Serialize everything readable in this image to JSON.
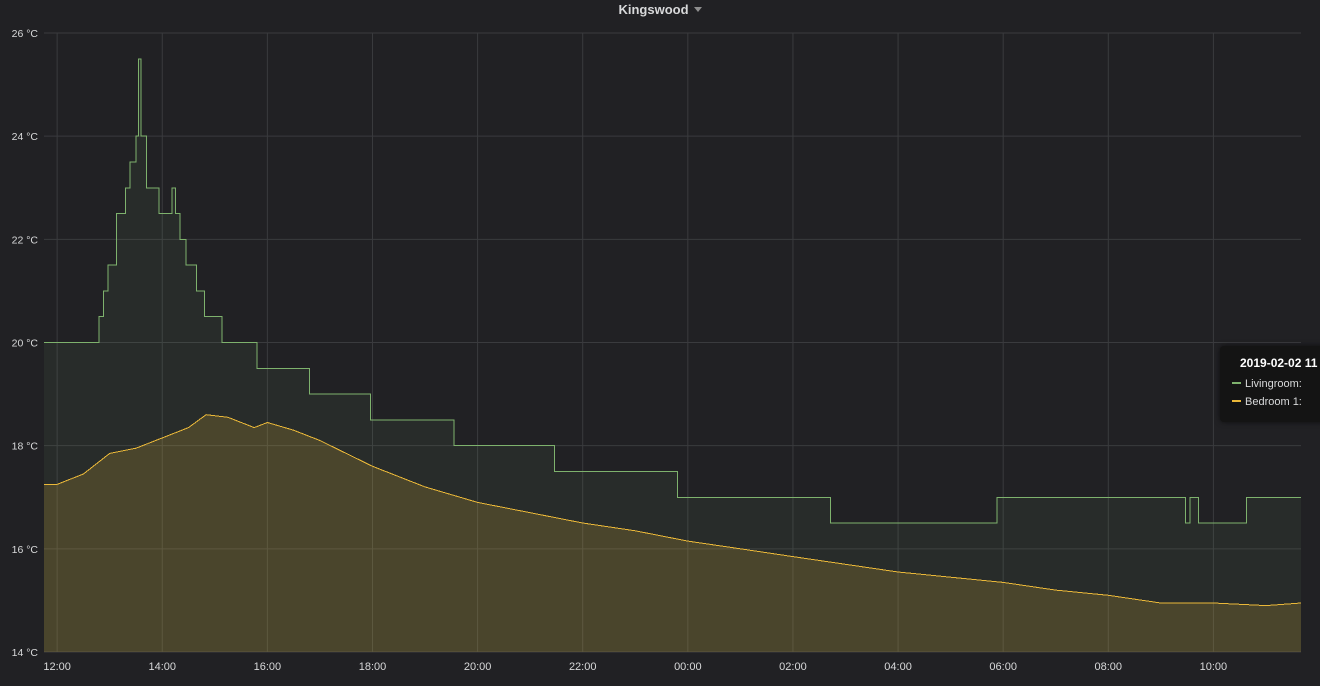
{
  "panel": {
    "title": "Kingswood"
  },
  "tooltip": {
    "time": "2019-02-02 11",
    "rows": [
      {
        "label": "Livingroom:",
        "color": "#7eb26d"
      },
      {
        "label": "Bedroom 1:",
        "color": "#eab839"
      }
    ]
  },
  "chart_data": {
    "type": "area",
    "title": "Kingswood",
    "ylim": [
      14,
      26
    ],
    "yunit": "°C",
    "yticks": [
      "14 °C",
      "16 °C",
      "18 °C",
      "20 °C",
      "22 °C",
      "24 °C",
      "26 °C"
    ],
    "xticks": [
      "12:00",
      "14:00",
      "16:00",
      "18:00",
      "20:00",
      "22:00",
      "00:00",
      "02:00",
      "04:00",
      "06:00",
      "08:00",
      "10:00"
    ],
    "xlim": [
      "2019-02-01 11:45",
      "2019-02-02 11:40"
    ],
    "grid": true,
    "series": [
      {
        "name": "Livingroom",
        "color": "#7eb26d",
        "step": true,
        "x": [
          "2019-02-01 11:45",
          "2019-02-01 12:48",
          "2019-02-01 12:53",
          "2019-02-01 12:58",
          "2019-02-01 13:08",
          "2019-02-01 13:18",
          "2019-02-01 13:23",
          "2019-02-01 13:30",
          "2019-02-01 13:33",
          "2019-02-01 13:36",
          "2019-02-01 13:42",
          "2019-02-01 13:56",
          "2019-02-01 14:11",
          "2019-02-01 14:15",
          "2019-02-01 14:20",
          "2019-02-01 14:27",
          "2019-02-01 14:39",
          "2019-02-01 14:48",
          "2019-02-01 15:08",
          "2019-02-01 15:48",
          "2019-02-01 16:48",
          "2019-02-01 17:58",
          "2019-02-01 19:33",
          "2019-02-01 21:28",
          "2019-02-01 23:48",
          "2019-02-02 02:43",
          "2019-02-02 05:53",
          "2019-02-02 09:28",
          "2019-02-02 09:33",
          "2019-02-02 09:43",
          "2019-02-02 10:38",
          "2019-02-02 10:43",
          "2019-02-02 11:18",
          "2019-02-02 11:40"
        ],
        "values": [
          20,
          20.5,
          21,
          21.5,
          22.5,
          23,
          23.5,
          24,
          25.5,
          24,
          23,
          22.5,
          23,
          22.5,
          22,
          21.5,
          21,
          20.5,
          20,
          19.5,
          19,
          18.5,
          18,
          17.5,
          17,
          16.5,
          17,
          16.5,
          17,
          16.5,
          17,
          17,
          17,
          17
        ]
      },
      {
        "name": "Bedroom 1",
        "color": "#eab839",
        "step": false,
        "x": [
          "2019-02-01 11:45",
          "2019-02-01 12:00",
          "2019-02-01 12:30",
          "2019-02-01 13:00",
          "2019-02-01 13:30",
          "2019-02-01 14:00",
          "2019-02-01 14:30",
          "2019-02-01 14:50",
          "2019-02-01 15:15",
          "2019-02-01 15:45",
          "2019-02-01 16:00",
          "2019-02-01 16:30",
          "2019-02-01 17:00",
          "2019-02-01 18:00",
          "2019-02-01 19:00",
          "2019-02-01 20:00",
          "2019-02-01 21:00",
          "2019-02-01 22:00",
          "2019-02-01 23:00",
          "2019-02-02 00:00",
          "2019-02-02 01:00",
          "2019-02-02 02:00",
          "2019-02-02 03:00",
          "2019-02-02 04:00",
          "2019-02-02 05:00",
          "2019-02-02 06:00",
          "2019-02-02 07:00",
          "2019-02-02 08:00",
          "2019-02-02 09:00",
          "2019-02-02 10:00",
          "2019-02-02 11:00",
          "2019-02-02 11:40"
        ],
        "values": [
          17.25,
          17.25,
          17.45,
          17.85,
          17.95,
          18.15,
          18.35,
          18.6,
          18.55,
          18.35,
          18.45,
          18.3,
          18.1,
          17.6,
          17.2,
          16.9,
          16.7,
          16.5,
          16.35,
          16.15,
          16.0,
          15.85,
          15.7,
          15.55,
          15.45,
          15.35,
          15.2,
          15.1,
          14.95,
          14.95,
          14.9,
          14.95
        ]
      }
    ]
  }
}
